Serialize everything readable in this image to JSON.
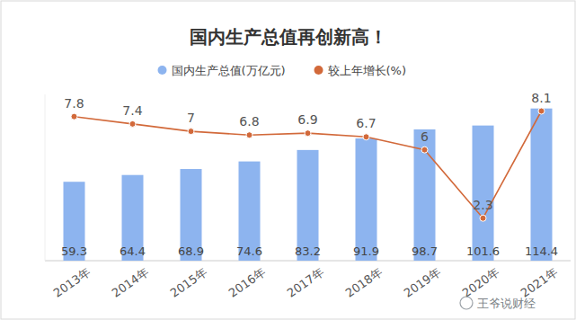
{
  "chart_data": {
    "type": "bar",
    "title": "国内生产总值再创新高！",
    "categories": [
      "2013年",
      "2014年",
      "2015年",
      "2016年",
      "2017年",
      "2018年",
      "2019年",
      "2020年",
      "2021年"
    ],
    "series": [
      {
        "name": "国内生产总值(万亿元)",
        "type": "bar",
        "color": "#8db4ef",
        "values": [
          59.3,
          64.4,
          68.9,
          74.6,
          83.2,
          91.9,
          98.7,
          101.6,
          114.4
        ]
      },
      {
        "name": "较上年增长(%)",
        "type": "line",
        "axis": "y2",
        "color": "#d2693a",
        "marker": "circle",
        "values": [
          7.8,
          7.4,
          7,
          6.8,
          6.9,
          6.7,
          6,
          2.3,
          8.1
        ]
      }
    ],
    "ylim": [
      0,
      125
    ],
    "y2lim": [
      0,
      9
    ],
    "grid": false,
    "data_labels": true,
    "tick_labels": "x",
    "legend": "top",
    "annotations": [
      "王爷说财经"
    ]
  }
}
